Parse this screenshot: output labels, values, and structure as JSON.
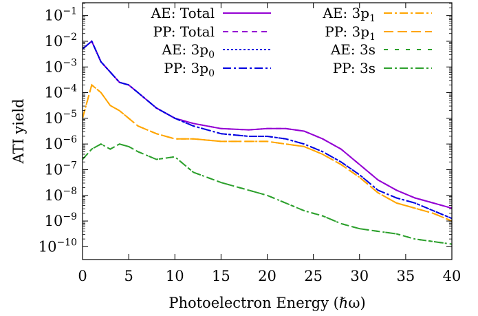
{
  "chart_data": {
    "type": "line",
    "title": "",
    "xlabel": "Photoelectron Energy (ℏω)",
    "ylabel": "ATI yield",
    "xlim": [
      0,
      40
    ],
    "ylim_exponents": [
      -10.5,
      -0.5
    ],
    "yscale": "log",
    "grid": false,
    "legend_position": "top",
    "x_ticks": [
      "0",
      "5",
      "10",
      "15",
      "20",
      "25",
      "30",
      "35",
      "40"
    ],
    "x_tick_values": [
      0,
      5,
      10,
      15,
      20,
      25,
      30,
      35,
      40
    ],
    "y_tick_base": "10",
    "y_tick_exponents": [
      "−1",
      "−2",
      "−3",
      "−4",
      "−5",
      "−6",
      "−7",
      "−8",
      "−9",
      "−10"
    ],
    "y_tick_values": [
      -1,
      -2,
      -3,
      -4,
      -5,
      -6,
      -7,
      -8,
      -9,
      -10
    ],
    "x": [
      0,
      1,
      2,
      3,
      4,
      5,
      6,
      8,
      10,
      12,
      15,
      18,
      20,
      22,
      24,
      26,
      28,
      30,
      32,
      34,
      36,
      38,
      40
    ],
    "series": [
      {
        "name": "AE: Total",
        "label_main": "AE: Total",
        "label_sub": "",
        "color": "#9400d3",
        "dash": "none",
        "values": [
          -2.3,
          -2.0,
          -2.8,
          -3.2,
          -3.6,
          -3.7,
          -4.0,
          -4.6,
          -5.0,
          -5.2,
          -5.4,
          -5.45,
          -5.4,
          -5.4,
          -5.5,
          -5.8,
          -6.2,
          -6.8,
          -7.4,
          -7.8,
          -8.1,
          -8.3,
          -8.5
        ]
      },
      {
        "name": "PP: Total",
        "label_main": "PP: Total",
        "label_sub": "",
        "color": "#9400d3",
        "dash": "8,6",
        "values": [
          -2.3,
          -2.0,
          -2.8,
          -3.2,
          -3.6,
          -3.7,
          -4.0,
          -4.6,
          -5.0,
          -5.2,
          -5.4,
          -5.45,
          -5.4,
          -5.4,
          -5.5,
          -5.8,
          -6.2,
          -6.8,
          -7.4,
          -7.8,
          -8.1,
          -8.3,
          -8.5
        ]
      },
      {
        "name": "AE: 3p0",
        "label_main": "AE: 3p",
        "label_sub": "0",
        "color": "#0000e0",
        "dash": "3,3",
        "values": [
          -2.3,
          -2.0,
          -2.8,
          -3.2,
          -3.6,
          -3.7,
          -4.0,
          -4.6,
          -5.0,
          -5.3,
          -5.6,
          -5.7,
          -5.7,
          -5.8,
          -6.0,
          -6.3,
          -6.7,
          -7.2,
          -7.8,
          -8.1,
          -8.3,
          -8.6,
          -8.9
        ]
      },
      {
        "name": "PP: 3p0",
        "label_main": "PP: 3p",
        "label_sub": "0",
        "color": "#0000e0",
        "dash": "12,4,3,4",
        "values": [
          -2.3,
          -2.0,
          -2.8,
          -3.2,
          -3.6,
          -3.7,
          -4.0,
          -4.6,
          -5.0,
          -5.3,
          -5.6,
          -5.7,
          -5.7,
          -5.8,
          -6.0,
          -6.3,
          -6.7,
          -7.2,
          -7.8,
          -8.1,
          -8.3,
          -8.6,
          -8.9
        ]
      },
      {
        "name": "AE: 3p1",
        "label_main": "AE: 3p",
        "label_sub": "1",
        "color": "#ffa500",
        "dash": "12,4,3,4",
        "values": [
          -5.0,
          -3.7,
          -4.0,
          -4.5,
          -4.7,
          -5.0,
          -5.3,
          -5.6,
          -5.8,
          -5.8,
          -5.9,
          -5.9,
          -5.9,
          -6.0,
          -6.1,
          -6.4,
          -6.8,
          -7.3,
          -7.9,
          -8.3,
          -8.5,
          -8.7,
          -9.0
        ]
      },
      {
        "name": "PP: 3p1",
        "label_main": "PP: 3p",
        "label_sub": "1",
        "color": "#ffa500",
        "dash": "14,6",
        "values": [
          -5.0,
          -3.7,
          -4.0,
          -4.5,
          -4.7,
          -5.0,
          -5.3,
          -5.6,
          -5.8,
          -5.8,
          -5.9,
          -5.9,
          -5.9,
          -6.0,
          -6.1,
          -6.4,
          -6.8,
          -7.3,
          -7.9,
          -8.3,
          -8.5,
          -8.7,
          -9.0
        ]
      },
      {
        "name": "AE: 3s",
        "label_main": "AE: 3s",
        "label_sub": "",
        "color": "#2ca02c",
        "dash": "6,10",
        "values": [
          -6.6,
          -6.2,
          -6.0,
          -6.2,
          -6.0,
          -6.1,
          -6.3,
          -6.6,
          -6.5,
          -7.1,
          -7.5,
          -7.8,
          -8.0,
          -8.3,
          -8.6,
          -8.8,
          -9.1,
          -9.3,
          -9.4,
          -9.5,
          -9.7,
          -9.8,
          -9.9
        ]
      },
      {
        "name": "PP: 3s",
        "label_main": "PP: 3s",
        "label_sub": "",
        "color": "#2ca02c",
        "dash": "12,4,3,4",
        "values": [
          -6.6,
          -6.2,
          -6.0,
          -6.2,
          -6.0,
          -6.1,
          -6.3,
          -6.6,
          -6.5,
          -7.1,
          -7.5,
          -7.8,
          -8.0,
          -8.3,
          -8.6,
          -8.8,
          -9.1,
          -9.3,
          -9.4,
          -9.5,
          -9.7,
          -9.8,
          -9.9
        ]
      }
    ]
  }
}
